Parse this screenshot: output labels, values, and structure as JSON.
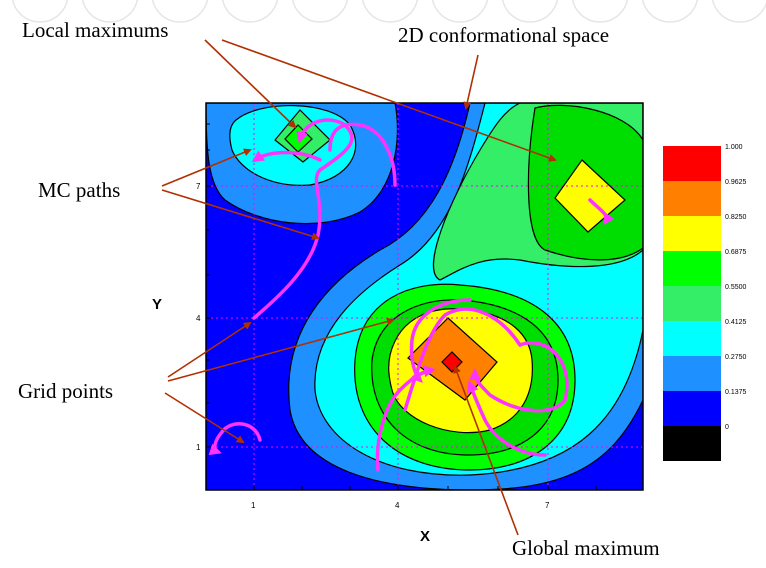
{
  "labels": {
    "local_maximums": "Local maximums",
    "conformational_space": "2D conformational space",
    "mc_paths": "MC paths",
    "grid_points": "Grid points",
    "global_maximum": "Global maximum"
  },
  "axes": {
    "x_label": "X",
    "y_label": "Y",
    "x_ticks": [
      "1",
      "4",
      "7"
    ],
    "y_ticks": [
      "1",
      "4",
      "7"
    ]
  },
  "colorbar": {
    "levels": [
      "1.000",
      "0.9625",
      "0.8250",
      "0.6875",
      "0.5500",
      "0.4125",
      "0.2750",
      "0.1375",
      "0"
    ],
    "colors": [
      "#ff0000",
      "#ff7f00",
      "#ffff00",
      "#00dd00",
      "#33ee66",
      "#00ffff",
      "#1e90ff",
      "#0000ff",
      "#000000"
    ]
  },
  "colors": {
    "background": "#0000ff",
    "grid": "#ff00ff",
    "mc_path": "#ff33ff",
    "arrow": "#b03000"
  }
}
